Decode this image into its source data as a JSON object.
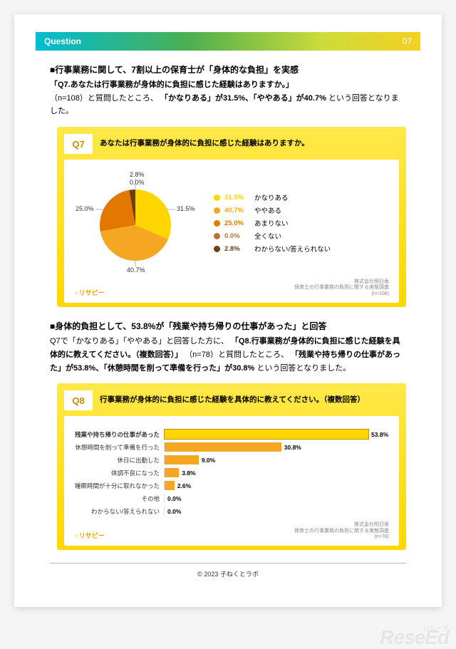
{
  "header": {
    "label": "Question",
    "page_num": "07"
  },
  "section1": {
    "title": "■行事業務に関して、7割以上の保育士が「身体的な負担」を実感",
    "q_label": "「Q7.あなたは行事業務が身体的に負担に感じた経験はありますか。」",
    "body_a": "（n=108）と質問したところ、",
    "hl1": "「かなりある」が31.5%、「ややある」が40.7%",
    "body_b": "という回答となりました。"
  },
  "q7": {
    "badge": "Q7",
    "title": "あなたは行事業務が身体的に負担に感じた経験はありますか。",
    "type": "pie",
    "background": "#ffffff",
    "items": [
      {
        "name": "かなりある",
        "pct": 31.5,
        "pct_label": "31.5%",
        "color": "#ffd500"
      },
      {
        "name": "ややある",
        "pct": 40.7,
        "pct_label": "40.7%",
        "color": "#f5a623"
      },
      {
        "name": "あまりない",
        "pct": 25.0,
        "pct_label": "25.0%",
        "color": "#e27800"
      },
      {
        "name": "全くない",
        "pct": 0.0,
        "pct_label": "0.0%",
        "color": "#b87333"
      },
      {
        "name": "わからない/答えられない",
        "pct": 2.8,
        "pct_label": "2.8%",
        "color": "#6b3e14"
      }
    ],
    "callouts": {
      "t28": "2.8%",
      "t00": "0.0%",
      "t25": "25.0%",
      "t315": "31.5%",
      "t407": "40.7%"
    }
  },
  "section2": {
    "title": "■身体的負担として、53.8%が「残業や持ち帰りの仕事があった」と回答",
    "body_a": "Q7で「かなりある」「ややある」と回答した方に、",
    "q_label": "「Q8.行事業務が身体的に負担に感じた経験を具体的に教えてください。（複数回答）」",
    "body_b": "（n=78）と質問したところ、",
    "hl1": "「残業や持ち帰りの仕事があった」が53.8%、「休憩時間を削って準備を行った」が30.8%",
    "body_c": "という回答となりました。"
  },
  "q8": {
    "badge": "Q8",
    "title": "行事業務が身体的に負担に感じた経験を具体的に教えてください。（複数回答）",
    "type": "bar",
    "max_pct": 60,
    "bar_color": "#f5a623",
    "highlight_color": "#ffd500",
    "items": [
      {
        "label": "残業や持ち帰りの仕事があった",
        "pct": 53.8,
        "pct_label": "53.8%",
        "highlight": true
      },
      {
        "label": "休憩時間を削って準備を行った",
        "pct": 30.8,
        "pct_label": "30.8%",
        "highlight": false
      },
      {
        "label": "休日に出勤した",
        "pct": 9.0,
        "pct_label": "9.0%",
        "highlight": false
      },
      {
        "label": "体調不良になった",
        "pct": 3.8,
        "pct_label": "3.8%",
        "highlight": false
      },
      {
        "label": "睡眠時間が十分に取れなかった",
        "pct": 2.6,
        "pct_label": "2.6%",
        "highlight": false
      },
      {
        "label": "その他",
        "pct": 0.0,
        "pct_label": "0.0%",
        "highlight": false
      },
      {
        "label": "わからない/答えられない",
        "pct": 0.0,
        "pct_label": "0.0%",
        "highlight": false
      }
    ]
  },
  "chart_footer": {
    "brand": "♀リサピー",
    "note1": "株式会社明日香",
    "note2": "保育士の行事業務の負担に関する実態調査",
    "note3_q7": "(n=108)",
    "note3_q8": "(n=78)"
  },
  "copyright": "© 2023 子ねくとラボ",
  "watermark": {
    "main": "ReseEd",
    "sub": "リシード"
  }
}
